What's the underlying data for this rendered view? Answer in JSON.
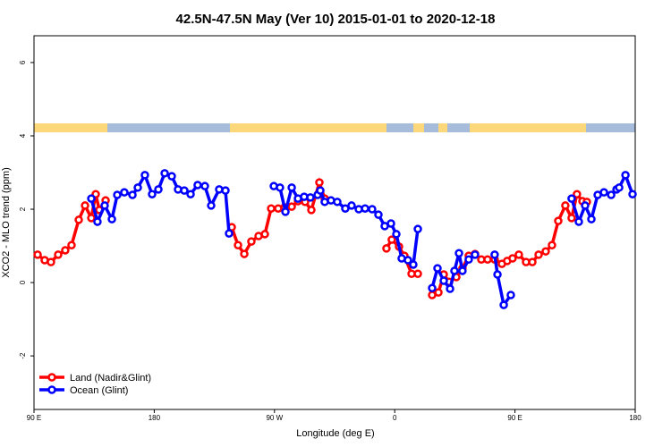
{
  "chart_data": {
    "type": "line",
    "title": "42.5N-47.5N May (Ver 10)   2015-01-01 to 2020-12-18",
    "x_label": "Longitude (deg E)",
    "y_label": "XCO2 - MLO trend (ppm)",
    "xlim": [
      90,
      540
    ],
    "xticks": [
      {
        "value": 90,
        "label": "90 E"
      },
      180,
      {
        "value": 270,
        "label": "90 W"
      },
      {
        "value": 360,
        "label": "0"
      },
      {
        "value": 450,
        "label": "90 E"
      },
      {
        "value": 540,
        "label": "180"
      }
    ],
    "ylim": [
      -3.46,
      6.73
    ],
    "yticks": [
      -2,
      0,
      2,
      4,
      6
    ],
    "legend": "bottom-left",
    "series": [
      {
        "name": "Land (Nadir&Glint)",
        "color": "#ff0000",
        "x": [
          92.7,
          98.0,
          102.7,
          108.1,
          113.4,
          118.1,
          123.5,
          128.2,
          132.9,
          136.2,
          138.9,
          143.6,
          null,
          238.0,
          242.7,
          247.4,
          252.7,
          258.1,
          262.8,
          267.5,
          272.8,
          277.5,
          282.9,
          287.6,
          292.9,
          297.6,
          303.6,
          307.6,
          null,
          353.8,
          357.8,
          363.2,
          367.2,
          372.6,
          377.3,
          null,
          388.0,
          392.7,
          396.7,
          400.7,
          406.1,
          410.7,
          415.4,
          420.1,
          424.8,
          429.5,
          434.8,
          440.2,
          444.2,
          448.2,
          452.9,
          458.3,
          463.0,
          467.7,
          473.0,
          477.7,
          482.4,
          487.7,
          492.4,
          496.4,
          500.5,
          503.8
        ],
        "values": [
          0.76,
          0.61,
          0.56,
          0.76,
          0.88,
          1.02,
          1.71,
          2.1,
          1.76,
          2.41,
          1.98,
          2.24,
          null,
          1.51,
          1.02,
          0.78,
          1.12,
          1.27,
          1.32,
          2.02,
          2.02,
          2.05,
          2.07,
          2.22,
          2.2,
          1.98,
          2.73,
          2.29,
          null,
          0.93,
          1.17,
          0.98,
          0.73,
          0.24,
          0.24,
          null,
          -0.34,
          -0.27,
          0.22,
          0.02,
          0.15,
          0.39,
          0.73,
          0.78,
          0.63,
          0.63,
          0.63,
          0.51,
          0.59,
          0.66,
          0.76,
          0.56,
          0.56,
          0.76,
          0.85,
          1.02,
          1.68,
          2.1,
          1.76,
          2.41,
          2.22,
          2.2
        ]
      },
      {
        "name": "Ocean (Glint)",
        "color": "#0000ff",
        "x": [
          132.9,
          137.5,
          142.9,
          148.3,
          152.3,
          157.6,
          163.7,
          167.7,
          173.0,
          178.4,
          183.1,
          187.8,
          193.1,
          197.8,
          202.5,
          207.2,
          212.5,
          217.9,
          222.6,
          228.6,
          233.3,
          236.0,
          null,
          269.5,
          274.1,
          278.2,
          282.9,
          287.6,
          292.2,
          296.9,
          302.3,
          304.3,
          307.6,
          312.3,
          317.0,
          323.0,
          327.7,
          333.1,
          337.8,
          343.1,
          347.8,
          352.5,
          357.2,
          361.2,
          365.2,
          369.9,
          373.9,
          377.3,
          null,
          388.0,
          392.0,
          396.7,
          401.4,
          404.7,
          408.1,
          410.7,
          415.4,
          420.1,
          null,
          434.8,
          436.9,
          441.6,
          446.9,
          null,
          492.4,
          497.8,
          502.5,
          507.2,
          511.9,
          516.6,
          522.0,
          526.0,
          528.0,
          532.7,
          538.0
        ],
        "values": [
          2.29,
          1.66,
          2.1,
          1.73,
          2.39,
          2.46,
          2.39,
          2.59,
          2.93,
          2.41,
          2.54,
          2.98,
          2.9,
          2.54,
          2.51,
          2.41,
          2.66,
          2.63,
          2.1,
          2.54,
          2.51,
          1.34,
          null,
          2.63,
          2.59,
          1.93,
          2.59,
          2.29,
          2.34,
          2.32,
          2.39,
          2.51,
          2.2,
          2.24,
          2.2,
          2.02,
          2.1,
          2.0,
          2.02,
          2.0,
          1.85,
          1.54,
          1.61,
          1.32,
          0.66,
          0.61,
          0.49,
          1.46,
          null,
          -0.15,
          0.39,
          0.05,
          -0.17,
          0.32,
          0.8,
          0.32,
          0.63,
          0.76,
          null,
          0.76,
          0.22,
          -0.61,
          -0.34,
          null,
          2.29,
          1.66,
          2.1,
          1.73,
          2.39,
          2.46,
          2.39,
          2.54,
          2.59,
          2.93,
          2.41
        ]
      }
    ]
  }
}
